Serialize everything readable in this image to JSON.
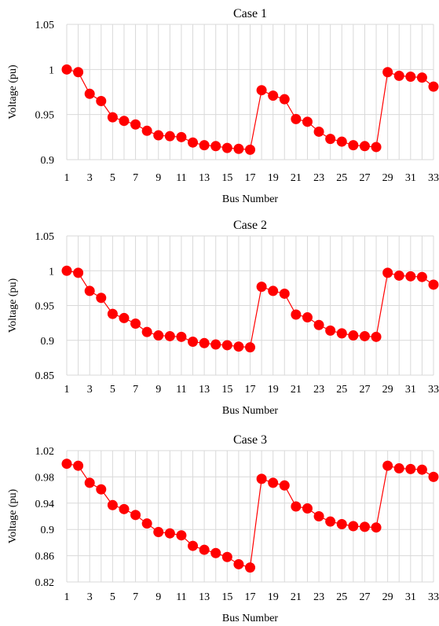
{
  "charts_meta": {
    "marker_color": "#ff0000",
    "grid_color": "#d9d9d9"
  },
  "chart_data": [
    {
      "type": "line",
      "title": "Case 1",
      "xlabel": "Bus Number",
      "ylabel": "Voltage (pu)",
      "x": [
        1,
        2,
        3,
        4,
        5,
        6,
        7,
        8,
        9,
        10,
        11,
        12,
        13,
        14,
        15,
        16,
        17,
        18,
        19,
        20,
        21,
        22,
        23,
        24,
        25,
        26,
        27,
        28,
        29,
        30,
        31,
        32,
        33
      ],
      "x_tick_labels": [
        "1",
        "3",
        "5",
        "7",
        "9",
        "11",
        "13",
        "15",
        "17",
        "19",
        "21",
        "23",
        "25",
        "27",
        "29",
        "31",
        "33"
      ],
      "ylim": [
        0.9,
        1.05
      ],
      "y_ticks": [
        0.9,
        0.95,
        1,
        1.05
      ],
      "y_tick_labels": [
        "0.9",
        "0.95",
        "1",
        "1.05"
      ],
      "grid": true,
      "series": [
        {
          "values": [
            1.0,
            0.997,
            0.973,
            0.965,
            0.947,
            0.943,
            0.939,
            0.932,
            0.927,
            0.926,
            0.925,
            0.919,
            0.916,
            0.915,
            0.913,
            0.912,
            0.911,
            0.977,
            0.971,
            0.967,
            0.945,
            0.942,
            0.931,
            0.923,
            0.92,
            0.916,
            0.915,
            0.914,
            0.997,
            0.993,
            0.992,
            0.991,
            0.981
          ]
        }
      ]
    },
    {
      "type": "line",
      "title": "Case 2",
      "xlabel": "Bus Number",
      "ylabel": "Voltage (pu)",
      "x": [
        1,
        2,
        3,
        4,
        5,
        6,
        7,
        8,
        9,
        10,
        11,
        12,
        13,
        14,
        15,
        16,
        17,
        18,
        19,
        20,
        21,
        22,
        23,
        24,
        25,
        26,
        27,
        28,
        29,
        30,
        31,
        32,
        33
      ],
      "x_tick_labels": [
        "1",
        "3",
        "5",
        "7",
        "9",
        "11",
        "13",
        "15",
        "17",
        "19",
        "21",
        "23",
        "25",
        "27",
        "29",
        "31",
        "33"
      ],
      "ylim": [
        0.85,
        1.05
      ],
      "y_ticks": [
        0.85,
        0.9,
        0.95,
        1,
        1.05
      ],
      "y_tick_labels": [
        "0.85",
        "0.9",
        "0.95",
        "1",
        "1.05"
      ],
      "grid": true,
      "series": [
        {
          "values": [
            1.0,
            0.997,
            0.971,
            0.961,
            0.938,
            0.932,
            0.924,
            0.912,
            0.907,
            0.906,
            0.905,
            0.898,
            0.896,
            0.894,
            0.893,
            0.891,
            0.89,
            0.977,
            0.971,
            0.967,
            0.937,
            0.933,
            0.922,
            0.914,
            0.91,
            0.907,
            0.906,
            0.905,
            0.997,
            0.993,
            0.992,
            0.991,
            0.98
          ]
        }
      ]
    },
    {
      "type": "line",
      "title": "Case 3",
      "xlabel": "Bus Number",
      "ylabel": "Voltage (pu)",
      "x": [
        1,
        2,
        3,
        4,
        5,
        6,
        7,
        8,
        9,
        10,
        11,
        12,
        13,
        14,
        15,
        16,
        17,
        18,
        19,
        20,
        21,
        22,
        23,
        24,
        25,
        26,
        27,
        28,
        29,
        30,
        31,
        32,
        33
      ],
      "x_tick_labels": [
        "1",
        "3",
        "5",
        "7",
        "9",
        "11",
        "13",
        "15",
        "17",
        "19",
        "21",
        "23",
        "25",
        "27",
        "29",
        "31",
        "33"
      ],
      "ylim": [
        0.82,
        1.02
      ],
      "y_ticks": [
        0.82,
        0.86,
        0.9,
        0.94,
        0.98,
        1.02
      ],
      "y_tick_labels": [
        "0.82",
        "0.86",
        "0.9",
        "0.94",
        "0.98",
        "1.02"
      ],
      "grid": true,
      "series": [
        {
          "values": [
            1.0,
            0.997,
            0.971,
            0.961,
            0.937,
            0.931,
            0.922,
            0.909,
            0.896,
            0.894,
            0.891,
            0.875,
            0.869,
            0.864,
            0.858,
            0.847,
            0.842,
            0.977,
            0.971,
            0.967,
            0.935,
            0.932,
            0.92,
            0.912,
            0.908,
            0.905,
            0.904,
            0.903,
            0.997,
            0.993,
            0.992,
            0.991,
            0.98
          ]
        }
      ]
    }
  ]
}
